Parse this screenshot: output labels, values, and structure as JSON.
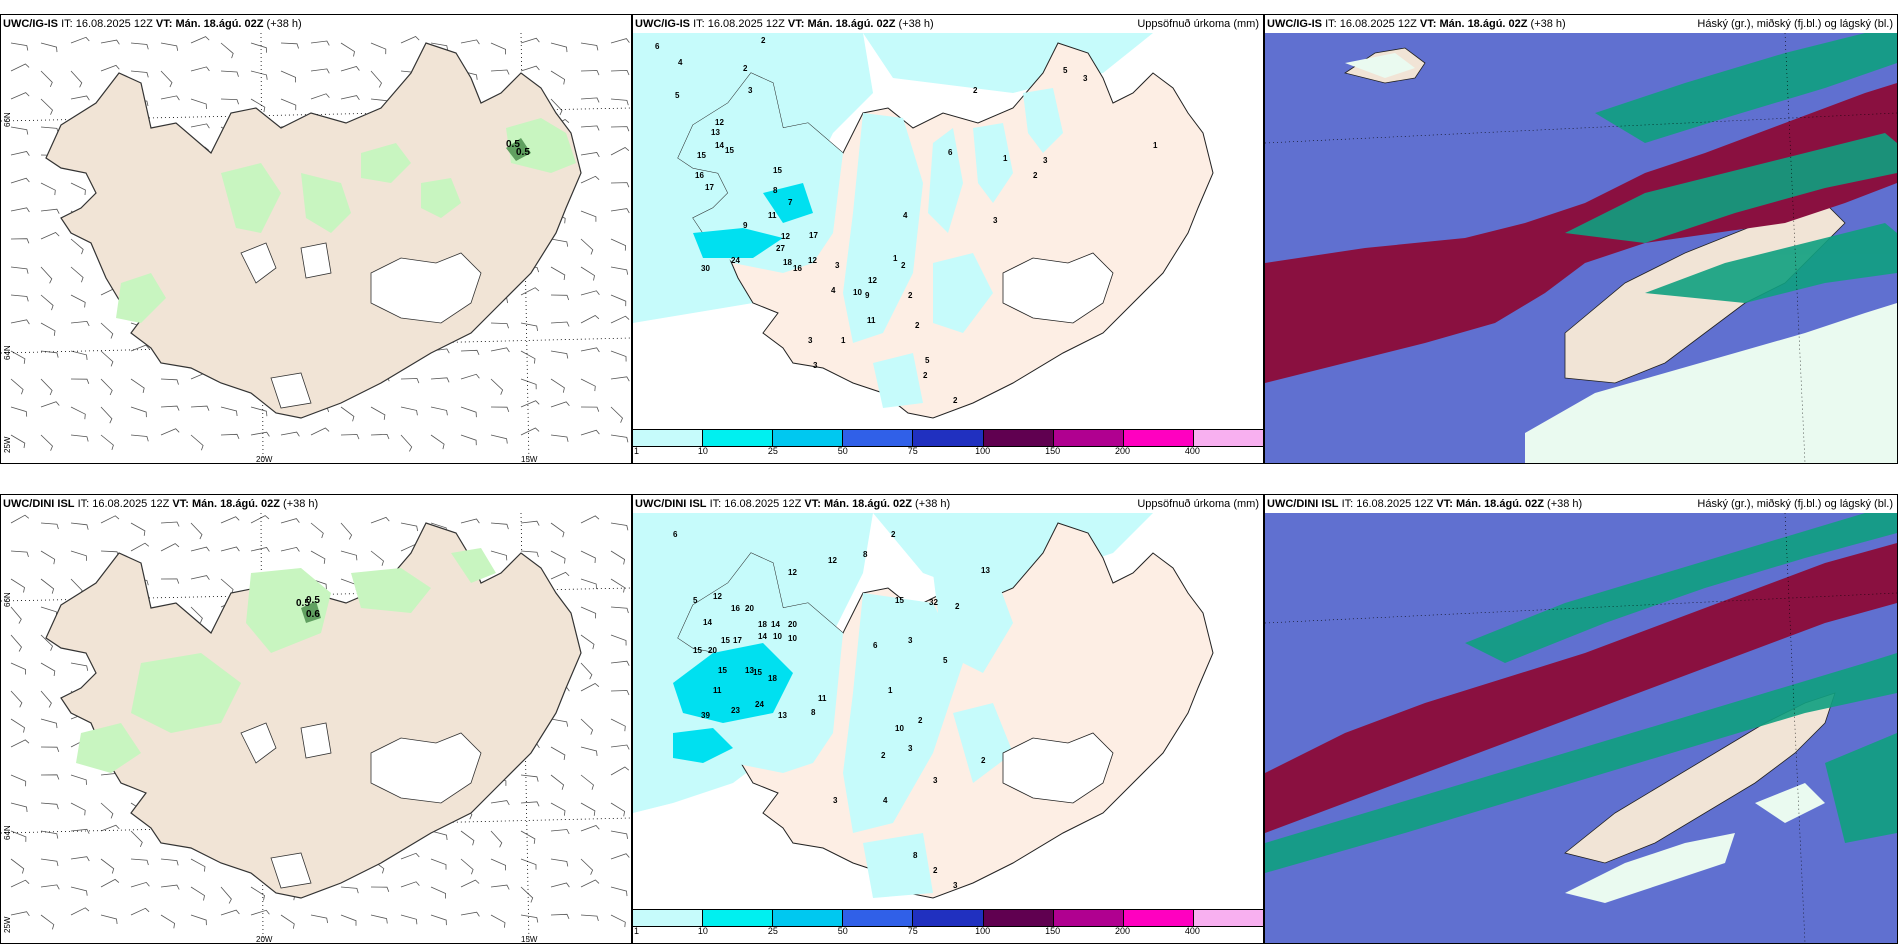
{
  "rows": [
    {
      "model": "UWC/IG-IS",
      "it_label": "IT:",
      "it_value": "16.08.2025 12Z",
      "vt_label": "VT:",
      "vt_value": "Mán. 18.ágú. 02Z",
      "lead": "(+38 h)",
      "precip_title": "Uppsöfnuð úrkoma (mm)",
      "cloud_title": "Háský (gr.), miðský (fj.bl.) og lágský (bl.)",
      "wind_point_labels": [
        "0.5",
        "0.5"
      ],
      "precip_numbers": [
        "2",
        "6",
        "4",
        "2",
        "5",
        "3",
        "12",
        "13",
        "15",
        "14",
        "15",
        "16",
        "17",
        "15",
        "7",
        "8",
        "9",
        "11",
        "12",
        "17",
        "27",
        "18",
        "16",
        "24",
        "30",
        "12",
        "3",
        "4",
        "10",
        "9",
        "12",
        "11",
        "2",
        "1",
        "2",
        "2",
        "3",
        "5",
        "1",
        "3",
        "2",
        "2",
        "1",
        "3",
        "2",
        "3",
        "4",
        "6",
        "2",
        "1",
        "5",
        "3"
      ]
    },
    {
      "model": "UWC/DINI ISL",
      "it_label": "IT:",
      "it_value": "16.08.2025 12Z",
      "vt_label": "VT:",
      "vt_value": "Mán. 18.ágú. 02Z",
      "lead": "(+38 h)",
      "precip_title": "Uppsöfnuð úrkoma (mm)",
      "cloud_title": "Háský (gr.), miðský (fj.bl.) og lágský (bl.)",
      "wind_point_labels": [
        "0.5",
        "0.6",
        "0.5"
      ],
      "precip_numbers": [
        "6",
        "2",
        "8",
        "12",
        "12",
        "5",
        "12",
        "16",
        "20",
        "14",
        "18",
        "14",
        "20",
        "15",
        "17",
        "14",
        "10",
        "10",
        "15",
        "20",
        "15",
        "11",
        "13",
        "18",
        "15",
        "39",
        "23",
        "24",
        "13",
        "11",
        "8",
        "15",
        "32",
        "2",
        "6",
        "3",
        "5",
        "13",
        "1",
        "2",
        "3",
        "10",
        "2",
        "3",
        "2",
        "3",
        "4",
        "8",
        "2",
        "3"
      ]
    }
  ],
  "colorbar": {
    "labels": [
      "1",
      "10",
      "25",
      "50",
      "75",
      "100",
      "150",
      "200",
      "400"
    ],
    "colors": [
      "#c6fbfb",
      "#00f0f0",
      "#00c8f0",
      "#3060e8",
      "#2030c0",
      "#600050",
      "#b00090",
      "#ff00c0",
      "#f8b0f0"
    ]
  },
  "axes": {
    "lon_labels": [
      "20W",
      "15W"
    ],
    "lat_labels": [
      "66N",
      "64N",
      "25W"
    ]
  },
  "colors": {
    "land": "#f1e4d6",
    "precip_green": "#c8f5c0",
    "precip_land": "#fdeee4",
    "precip_cyan": "#c6fbfb",
    "cloud_blue": "#6070d0",
    "cloud_maroon": "#8a1040",
    "cloud_green": "#10a080"
  },
  "icons": [
    "wind-barb-icon"
  ]
}
